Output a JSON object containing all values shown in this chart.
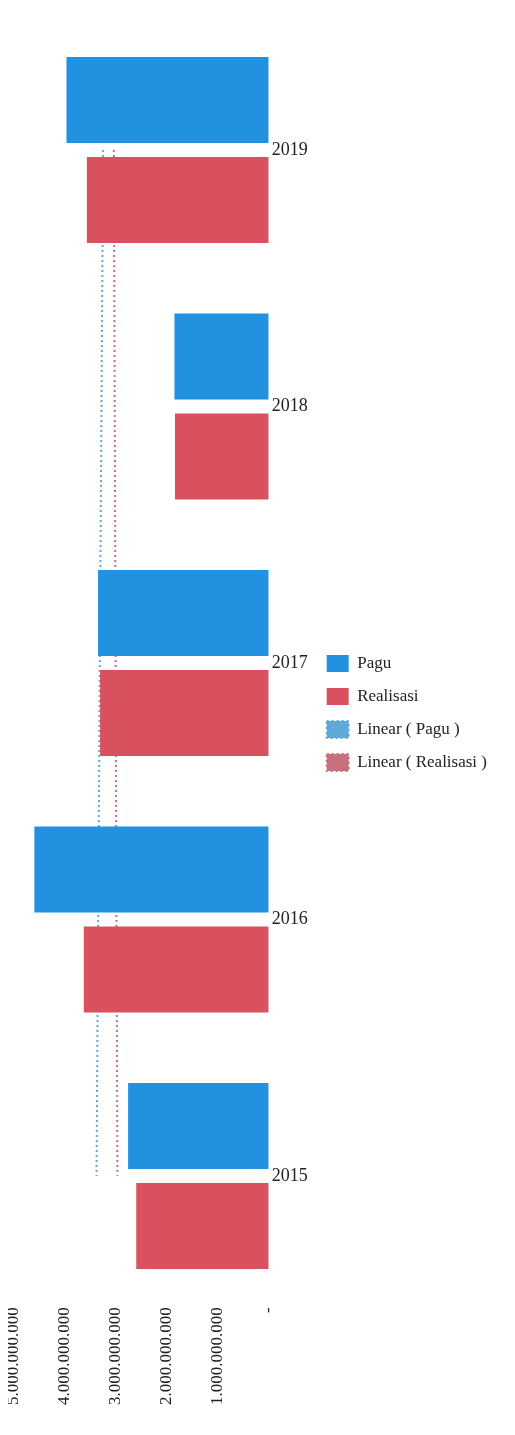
{
  "chart_data": {
    "type": "bar",
    "orientation": "horizontal",
    "categories": [
      "2019",
      "2018",
      "2017",
      "2016",
      "2015"
    ],
    "series": [
      {
        "name": "Pagu",
        "color": "#2191e0",
        "values": [
          3970000000,
          1850000000,
          3350000000,
          4600000000,
          2760000000
        ]
      },
      {
        "name": "Realisasi",
        "color": "#d9505e",
        "values": [
          3570000000,
          1840000000,
          3310000000,
          3630000000,
          2600000000
        ]
      },
      {
        "name": "Linear ( Pagu )",
        "type": "line",
        "color": "#5fa8d8",
        "line_style": "dotted",
        "values": [
          3250000000,
          null,
          null,
          null,
          3380000000
        ]
      },
      {
        "name": "Linear ( Realisasi )",
        "type": "line",
        "color": "#c8707e",
        "line_style": "dotted",
        "values": [
          3040000000,
          null,
          null,
          null,
          2970000000
        ]
      }
    ],
    "xlim": [
      5000000000,
      0
    ],
    "xticks": [
      {
        "value": 5000000000,
        "label": "5.000.000.000"
      },
      {
        "value": 4000000000,
        "label": "4.000.000.000"
      },
      {
        "value": 3000000000,
        "label": "3.000.000.000"
      },
      {
        "value": 2000000000,
        "label": "2.000.000.000"
      },
      {
        "value": 1000000000,
        "label": "1.000.000.000"
      },
      {
        "value": 0,
        "label": "-"
      }
    ],
    "grid": false,
    "legend": "right",
    "marker": "none"
  }
}
